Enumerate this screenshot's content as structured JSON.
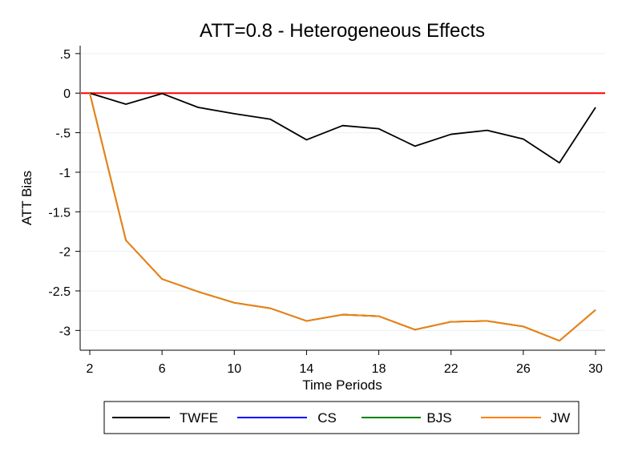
{
  "chart_data": {
    "type": "line",
    "title": "ATT=0.8 - Heterogeneous Effects",
    "xlabel": "Time Periods",
    "ylabel": "ATT Bias",
    "x": [
      2,
      4,
      6,
      8,
      10,
      12,
      14,
      16,
      18,
      20,
      22,
      24,
      26,
      28,
      30
    ],
    "xticks": [
      2,
      6,
      10,
      14,
      18,
      22,
      26,
      30
    ],
    "xtick_labels": [
      "2",
      "6",
      "10",
      "14",
      "18",
      "22",
      "26",
      "30"
    ],
    "yticks": [
      0.5,
      0,
      -0.5,
      -1,
      -1.5,
      -2,
      -2.5,
      -3
    ],
    "ytick_labels": [
      ".5",
      "0",
      "-.5",
      "-1",
      "-1.5",
      "-2",
      "-2.5",
      "-3"
    ],
    "xlim": [
      2,
      30
    ],
    "ylim": [
      -3.25,
      0.6
    ],
    "grid": "horizontal",
    "legend_position": "bottom",
    "reference_line": {
      "y": 0,
      "color": "#ff0000"
    },
    "series": [
      {
        "name": "TWFE",
        "color": "#000000",
        "values": [
          0,
          -0.14,
          -0.005,
          -0.18,
          -0.26,
          -0.33,
          -0.59,
          -0.41,
          -0.45,
          -0.67,
          -0.52,
          -0.47,
          -0.58,
          -0.88,
          -0.18
        ]
      },
      {
        "name": "CS",
        "color": "#0000ff",
        "values": [
          0,
          -1.86,
          -2.35,
          -2.51,
          -2.65,
          -2.72,
          -2.88,
          -2.8,
          -2.82,
          -2.99,
          -2.89,
          -2.88,
          -2.95,
          -3.13,
          -2.74
        ]
      },
      {
        "name": "BJS",
        "color": "#008000",
        "values": [
          0,
          -1.86,
          -2.35,
          -2.51,
          -2.65,
          -2.72,
          -2.88,
          -2.8,
          -2.82,
          -2.99,
          -2.89,
          -2.88,
          -2.95,
          -3.13,
          -2.74
        ]
      },
      {
        "name": "JW",
        "color": "#ff8000",
        "values": [
          0,
          -1.86,
          -2.35,
          -2.51,
          -2.65,
          -2.72,
          -2.88,
          -2.8,
          -2.82,
          -2.99,
          -2.89,
          -2.88,
          -2.95,
          -3.13,
          -2.74
        ]
      }
    ]
  }
}
